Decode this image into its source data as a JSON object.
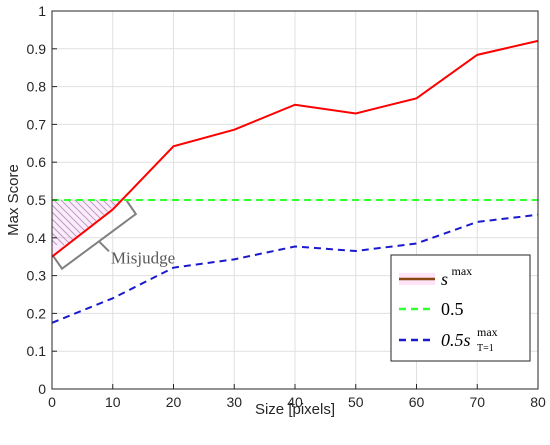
{
  "chart_data": {
    "type": "line",
    "title": "",
    "xlabel": "Size [pixels]",
    "ylabel": "Max Score",
    "xlim": [
      0,
      80
    ],
    "ylim": [
      0,
      1
    ],
    "x_ticks": [
      0,
      10,
      20,
      30,
      40,
      50,
      60,
      70,
      80
    ],
    "y_ticks": [
      0,
      0.1,
      0.2,
      0.3,
      0.4,
      0.5,
      0.6,
      0.7,
      0.8,
      0.9,
      1
    ],
    "grid": true,
    "legend_position": "bottom-right",
    "x": [
      0,
      10,
      20,
      30,
      40,
      50,
      60,
      70,
      80
    ],
    "series": [
      {
        "name": "s",
        "name_sup": "max",
        "color": "#ff0000",
        "legend_line_color": "#8b4513",
        "style": "solid",
        "values": [
          0.35,
          0.475,
          0.642,
          0.686,
          0.752,
          0.729,
          0.769,
          0.884,
          0.921
        ]
      },
      {
        "name": "0.5",
        "color": "#33ff33",
        "style": "dashed",
        "values": [
          0.5,
          0.5,
          0.5,
          0.5,
          0.5,
          0.5,
          0.5,
          0.5,
          0.5
        ]
      },
      {
        "name": "0.5s",
        "name_sup": "max",
        "name_sub": "T=1",
        "color": "#1a1acc",
        "style": "dashed",
        "values": [
          0.175,
          0.24,
          0.321,
          0.343,
          0.377,
          0.365,
          0.385,
          0.442,
          0.461
        ]
      }
    ],
    "annotations": [
      {
        "text": "Misjudge",
        "x_range": [
          0,
          12
        ],
        "y_range": [
          0.35,
          0.5
        ],
        "style": "hatched"
      }
    ]
  }
}
